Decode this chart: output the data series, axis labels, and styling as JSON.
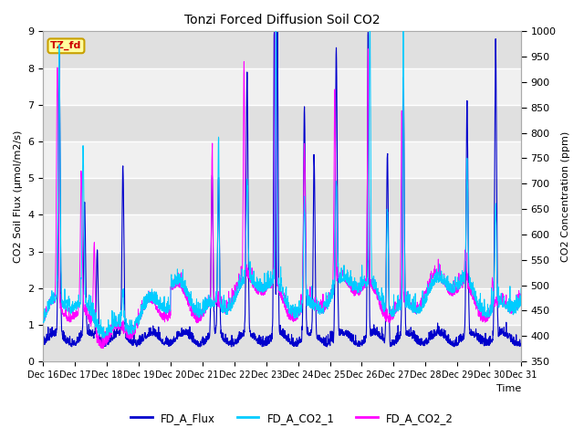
{
  "title": "Tonzi Forced Diffusion Soil CO2",
  "xlabel": "Time",
  "ylabel_left": "CO2 Soil Flux (μmol/m2/s)",
  "ylabel_right": "CO2 Concentration (ppm)",
  "ylim_left": [
    0.0,
    9.0
  ],
  "ylim_right": [
    350,
    1000
  ],
  "yticks_left": [
    0.0,
    1.0,
    2.0,
    3.0,
    4.0,
    5.0,
    6.0,
    7.0,
    8.0,
    9.0
  ],
  "yticks_right": [
    350,
    400,
    450,
    500,
    550,
    600,
    650,
    700,
    750,
    800,
    850,
    900,
    950,
    1000
  ],
  "xtick_labels": [
    "Dec 16",
    "Dec 17",
    "Dec 18",
    "Dec 19",
    "Dec 20",
    "Dec 21",
    "Dec 22",
    "Dec 23",
    "Dec 24",
    "Dec 25",
    "Dec 26",
    "Dec 27",
    "Dec 28",
    "Dec 29",
    "Dec 30",
    "Dec 31"
  ],
  "legend_entries": [
    "FD_A_Flux",
    "FD_A_CO2_1",
    "FD_A_CO2_2"
  ],
  "line_flux_color": "#0000cc",
  "line_co2_1_color": "#00ccff",
  "line_co2_2_color": "#ff00ff",
  "tag_text": "TZ_fd",
  "tag_bg": "#ffffa0",
  "tag_border": "#c8a000",
  "tag_text_color": "#cc0000",
  "fig_bg": "#ffffff",
  "plot_bg": "#f0f0f0",
  "band_color": "#e0e0e0",
  "n_points": 2160,
  "n_days": 15
}
